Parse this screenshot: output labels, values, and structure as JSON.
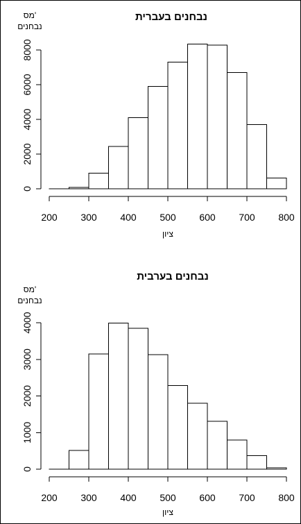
{
  "chart_data": [
    {
      "type": "bar",
      "title": "נבחנים בעברית",
      "ylabel_line1": "מס'",
      "ylabel_line2": "נבחנים",
      "xlabel": "ציון",
      "bin_edges": [
        200,
        250,
        300,
        350,
        400,
        450,
        500,
        550,
        600,
        650,
        700,
        750,
        800
      ],
      "values": [
        0,
        80,
        900,
        2450,
        4100,
        5900,
        7300,
        8350,
        8280,
        6700,
        3700,
        620
      ],
      "xlim": [
        200,
        800
      ],
      "ylim": [
        0,
        8000
      ],
      "xticks": [
        200,
        300,
        400,
        500,
        600,
        700,
        800
      ],
      "yticks": [
        0,
        2000,
        4000,
        6000,
        8000
      ]
    },
    {
      "type": "bar",
      "title": "נבחנים בערבית",
      "ylabel_line1": "מס'",
      "ylabel_line2": "נבחנים",
      "xlabel": "ציון",
      "bin_edges": [
        200,
        250,
        300,
        350,
        400,
        450,
        500,
        550,
        600,
        650,
        700,
        750,
        800
      ],
      "values": [
        0,
        510,
        3150,
        3990,
        3850,
        3130,
        2280,
        1800,
        1310,
        800,
        370,
        40
      ],
      "xlim": [
        200,
        800
      ],
      "ylim": [
        0,
        4000
      ],
      "xticks": [
        200,
        300,
        400,
        500,
        600,
        700,
        800
      ],
      "yticks": [
        0,
        1000,
        2000,
        3000,
        4000
      ]
    }
  ]
}
